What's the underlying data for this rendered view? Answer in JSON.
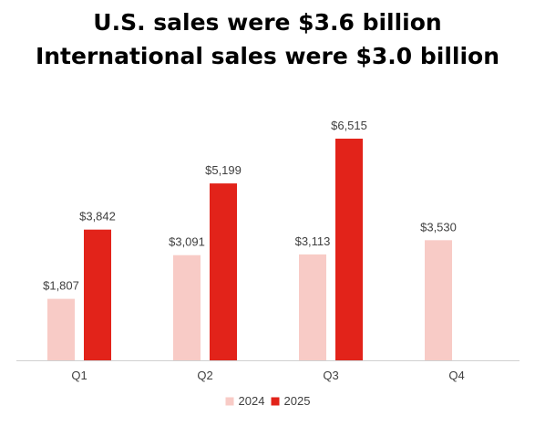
{
  "title": {
    "line1": "U.S. sales were $3.6 billion",
    "line2": "International sales were $3.0 billion"
  },
  "chart_data": {
    "type": "bar",
    "categories": [
      "Q1",
      "Q2",
      "Q3",
      "Q4"
    ],
    "series": [
      {
        "name": "2024",
        "color": "#f8cbc6",
        "values": [
          1807,
          3091,
          3113,
          3530
        ],
        "labels": [
          "$1,807",
          "$3,091",
          "$3,113",
          "$3,530"
        ]
      },
      {
        "name": "2025",
        "color": "#e2231a",
        "values": [
          3842,
          5199,
          6515,
          null
        ],
        "labels": [
          "$3,842",
          "$5,199",
          "$6,515",
          ""
        ]
      }
    ],
    "ylim": [
      0,
      6515
    ],
    "grid": false,
    "legend_position": "bottom-center",
    "axis_color": "#d0d0d0"
  }
}
